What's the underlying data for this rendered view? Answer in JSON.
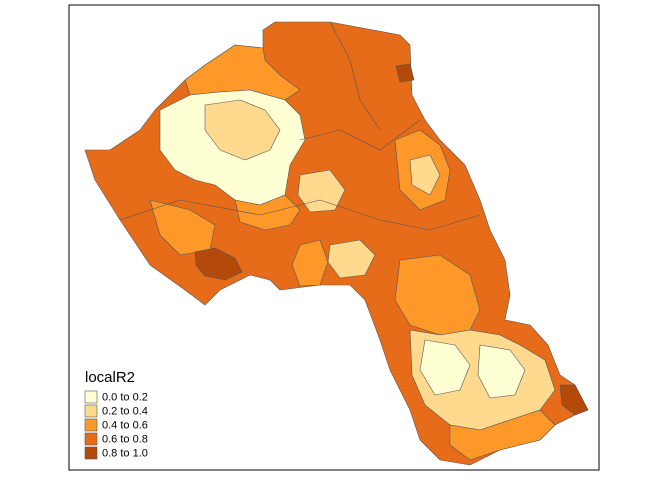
{
  "legend": {
    "title": "localR2",
    "entries": [
      {
        "label": "0.0 to 0.2",
        "color": "#FFFFD4"
      },
      {
        "label": "0.2 to 0.4",
        "color": "#FED98E"
      },
      {
        "label": "0.4 to 0.6",
        "color": "#FE9929"
      },
      {
        "label": "0.6 to 0.8",
        "color": "#E66C1A"
      },
      {
        "label": "0.8 to 1.0",
        "color": "#B34A0A"
      }
    ]
  }
}
